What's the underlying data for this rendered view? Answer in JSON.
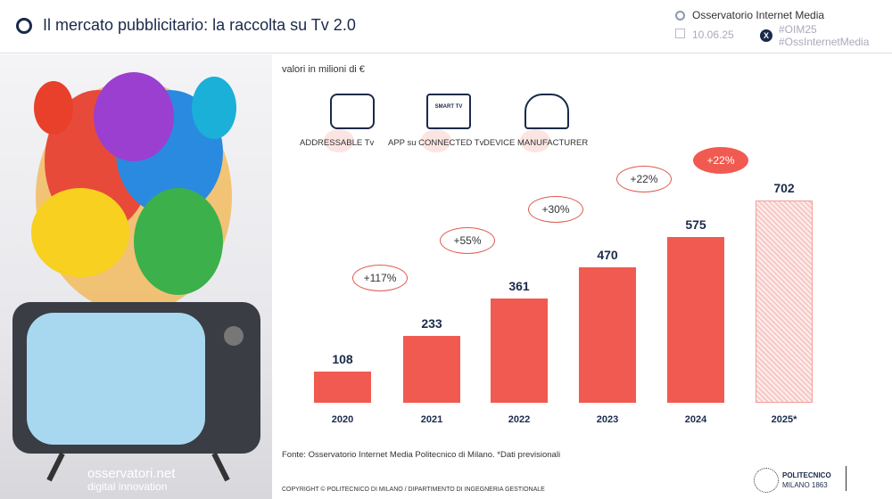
{
  "header": {
    "title": "Il mercato pubblicitario: la raccolta su Tv 2.0",
    "org": "Osservatorio Internet Media",
    "date": "10.06.25",
    "hashtags": [
      "#OIM25",
      "#OssInternetMedia"
    ],
    "x_label": "X"
  },
  "subtitle": "valori in milioni di €",
  "categories": [
    {
      "label": "ADDRESSABLE Tv",
      "icon": "video-camera-icon"
    },
    {
      "label": "APP su CONNECTED Tv",
      "icon": "smart-tv-icon",
      "icon_text": "SMART TV"
    },
    {
      "label": "DEVICE MANUFACTURER",
      "icon": "hardhat-gear-icon"
    }
  ],
  "chart_data": {
    "type": "bar",
    "categories": [
      "2020",
      "2021",
      "2022",
      "2023",
      "2024",
      "2025*"
    ],
    "values": [
      108,
      233,
      361,
      470,
      575,
      702
    ],
    "growth": [
      "+117%",
      "+55%",
      "+30%",
      "+22%",
      "+22%"
    ],
    "forecast_index": 5,
    "colors": {
      "bar": "#f15a50",
      "forecast": "#f7c8c4"
    }
  },
  "footer": {
    "source": "Fonte: Osservatorio Internet Media Politecnico di Milano. *Dati previsionali",
    "copyright": "COPYRIGHT © POLITECNICO DI MILANO / DIPARTIMENTO DI INGEGNERIA GESTIONALE",
    "brand": "osservatori.net",
    "brand_sub": "digital innovation",
    "poli": "POLITECNICO",
    "poli_sub": "MILANO 1863"
  }
}
